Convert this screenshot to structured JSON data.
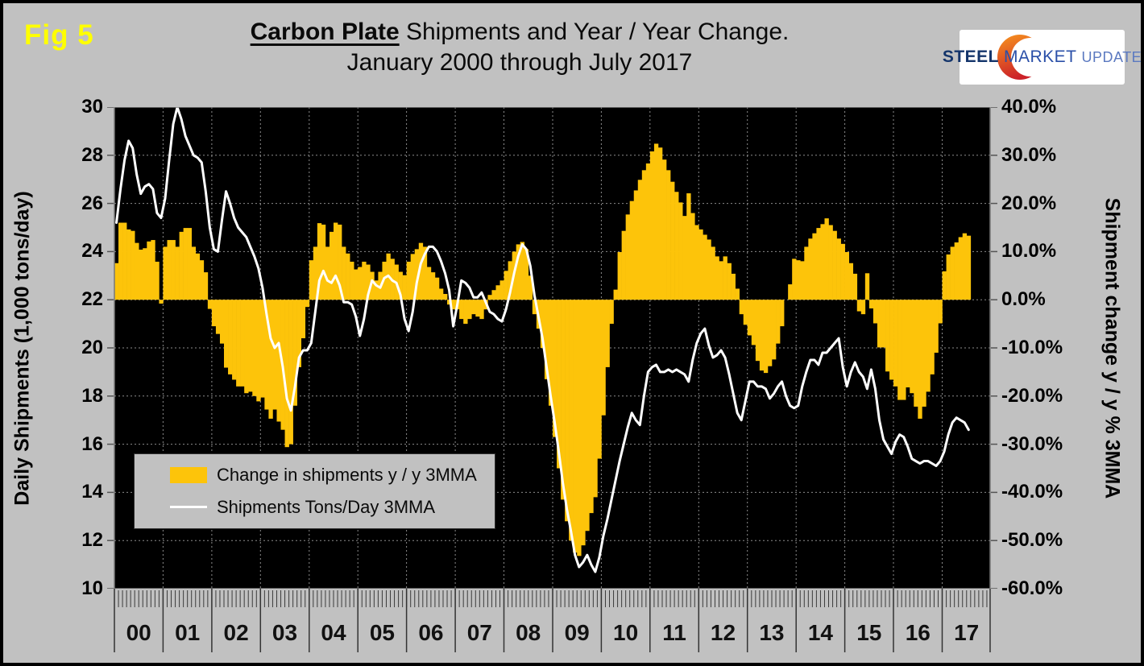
{
  "figure_label": "Fig 5",
  "title": {
    "part_bold": "Carbon Plate",
    "part_rest": " Shipments and Year / Year Change.",
    "line2": "January 2000 through July 2017"
  },
  "logo": {
    "steel": "STEEL",
    "market": "MARKET",
    "update": "UPDATE"
  },
  "legend": {
    "bar_label": "Change in shipments y / y 3MMA",
    "line_label": "Shipments Tons/Day 3MMA"
  },
  "colors": {
    "background": "#C1C1C1",
    "plot_background": "#000000",
    "bar": "#FDC40A",
    "line": "#FFFFFF",
    "fig_label": "#FFFF00",
    "logo_orange": "#F7941E",
    "logo_red": "#CC2229"
  },
  "chart_data": {
    "type": "combo",
    "subtypes": [
      "bar",
      "line"
    ],
    "title": "Carbon Plate Shipments and Year / Year Change. January 2000 through July 2017",
    "x_start": "2000-01",
    "x_end": "2017-07",
    "x_year_labels": [
      "00",
      "01",
      "02",
      "03",
      "04",
      "05",
      "06",
      "07",
      "08",
      "09",
      "10",
      "11",
      "12",
      "13",
      "14",
      "15",
      "16",
      "17"
    ],
    "grid": true,
    "legend_position": "inside-left-bottom",
    "y_left": {
      "label": "Daily Shipments (1,000 tons/day)",
      "min": 10,
      "max": 30,
      "step": 2,
      "tick_labels": [
        "30",
        "28",
        "26",
        "24",
        "22",
        "20",
        "18",
        "16",
        "14",
        "12",
        "10"
      ]
    },
    "y_right": {
      "label": "Shipment change y / y % 3MMA",
      "min": -60,
      "max": 40,
      "step": 10,
      "tick_labels": [
        "40.0%",
        "30.0%",
        "20.0%",
        "10.0%",
        "0.0%",
        "-10.0%",
        "-20.0%",
        "-30.0%",
        "-40.0%",
        "-50.0%",
        "-60.0%"
      ]
    },
    "series": [
      {
        "name": "Change in shipments y / y 3MMA",
        "type": "bar",
        "axis": "right",
        "unit": "percent",
        "values": [
          7.6,
          16.0,
          16.0,
          14.6,
          14.3,
          11.8,
          10.4,
          10.7,
          12.1,
          12.4,
          7.9,
          -0.8,
          11.0,
          12.4,
          12.4,
          11.0,
          14.1,
          14.9,
          14.9,
          11.0,
          9.6,
          8.2,
          5.7,
          -1.9,
          -5.5,
          -7.1,
          -9.1,
          -14.1,
          -15.5,
          -16.6,
          -18.0,
          -18.0,
          -19.4,
          -19.1,
          -20.0,
          -21.1,
          -20.3,
          -22.8,
          -24.7,
          -22.8,
          -25.3,
          -27.0,
          -30.6,
          -30.0,
          -22.0,
          -14.0,
          -8.0,
          -1.5,
          8.2,
          11.0,
          15.9,
          15.6,
          11.0,
          14.1,
          16.0,
          15.6,
          11.0,
          9.6,
          7.9,
          6.3,
          6.8,
          7.9,
          7.3,
          5.8,
          4.0,
          5.8,
          7.9,
          9.6,
          8.5,
          7.3,
          5.8,
          5.1,
          7.9,
          9.5,
          10.5,
          11.8,
          11.0,
          6.8,
          5.7,
          4.6,
          2.3,
          1.2,
          -1.0,
          -2.0,
          -2.0,
          -4.0,
          -5.0,
          -4.0,
          -3.0,
          -3.5,
          -4.0,
          -2.0,
          1.0,
          2.0,
          3.0,
          4.0,
          6.0,
          8.0,
          10.0,
          11.5,
          12.0,
          10.5,
          5.0,
          -3.0,
          -6.0,
          -10.0,
          -16.5,
          -22.0,
          -28.5,
          -35.0,
          -41.5,
          -46.0,
          -50.0,
          -52.5,
          -53.2,
          -51.0,
          -48.0,
          -44.3,
          -41.0,
          -33.0,
          -24.0,
          -14.0,
          -5.0,
          2.1,
          9.9,
          14.3,
          17.7,
          20.5,
          22.7,
          24.9,
          26.9,
          28.3,
          30.8,
          32.4,
          31.6,
          29.1,
          26.9,
          24.5,
          22.4,
          20.2,
          17.4,
          22.1,
          18.0,
          15.5,
          14.6,
          13.5,
          12.5,
          11.0,
          9.0,
          8.0,
          9.0,
          7.6,
          5.4,
          2.3,
          -3.0,
          -5.2,
          -7.4,
          -9.4,
          -12.7,
          -14.7,
          -15.2,
          -13.8,
          -12.4,
          -9.1,
          -5.5,
          0.0,
          3.2,
          8.5,
          8.2,
          8.0,
          11.0,
          12.7,
          13.8,
          14.9,
          15.7,
          16.9,
          15.5,
          14.3,
          12.7,
          11.6,
          9.9,
          7.6,
          5.4,
          -2.4,
          -3.0,
          5.5,
          -1.8,
          -4.9,
          -9.9,
          -9.9,
          -14.9,
          -16.6,
          -18.0,
          -20.8,
          -20.8,
          -18.2,
          -19.4,
          -22.2,
          -24.7,
          -22.2,
          -19.1,
          -15.5,
          -11.0,
          -4.9,
          5.9,
          9.4,
          11.0,
          11.9,
          13.0,
          13.8,
          13.3
        ]
      },
      {
        "name": "Shipments Tons/Day 3MMA",
        "type": "line",
        "axis": "left",
        "unit": "thousand tons/day",
        "values": [
          25.2,
          26.6,
          27.8,
          28.6,
          28.3,
          27.2,
          26.4,
          26.7,
          26.8,
          26.6,
          25.6,
          25.4,
          26.2,
          27.8,
          29.3,
          30.0,
          29.5,
          28.8,
          28.4,
          28.0,
          27.9,
          27.7,
          26.5,
          25.0,
          24.1,
          24.0,
          25.3,
          26.5,
          26.0,
          25.4,
          25.0,
          24.8,
          24.6,
          24.2,
          23.8,
          23.3,
          22.5,
          21.4,
          20.4,
          20.0,
          20.2,
          19.2,
          17.9,
          17.4,
          18.4,
          19.6,
          19.9,
          19.9,
          20.2,
          21.5,
          22.8,
          23.2,
          22.8,
          22.7,
          23.0,
          22.6,
          21.9,
          21.9,
          21.8,
          21.3,
          20.5,
          21.2,
          22.2,
          22.8,
          22.6,
          22.5,
          22.9,
          23.0,
          22.8,
          22.7,
          22.2,
          21.2,
          20.7,
          21.5,
          22.7,
          23.5,
          23.9,
          24.2,
          24.2,
          24.0,
          23.6,
          23.1,
          22.4,
          20.9,
          21.8,
          22.8,
          22.7,
          22.5,
          22.1,
          22.1,
          22.3,
          21.9,
          21.5,
          21.4,
          21.2,
          21.1,
          21.6,
          22.3,
          23.1,
          23.8,
          24.3,
          24.1,
          23.4,
          22.2,
          21.3,
          20.4,
          19.2,
          18.0,
          16.9,
          15.7,
          14.4,
          13.3,
          12.4,
          11.4,
          10.9,
          11.1,
          11.4,
          11.0,
          10.7,
          11.3,
          12.2,
          12.9,
          13.7,
          14.5,
          15.3,
          16.0,
          16.7,
          17.3,
          17.0,
          16.8,
          18.0,
          19.0,
          19.2,
          19.3,
          19.0,
          19.0,
          19.1,
          19.0,
          19.1,
          19.0,
          18.9,
          18.6,
          19.5,
          20.2,
          20.6,
          20.8,
          20.1,
          19.6,
          19.7,
          19.9,
          19.6,
          18.9,
          18.1,
          17.3,
          17.0,
          17.8,
          18.6,
          18.6,
          18.4,
          18.4,
          18.3,
          17.9,
          18.1,
          18.4,
          18.6,
          18.0,
          17.6,
          17.5,
          17.6,
          18.4,
          19.0,
          19.5,
          19.5,
          19.3,
          19.8,
          19.8,
          20.0,
          20.2,
          20.4,
          19.2,
          18.4,
          19.0,
          19.4,
          19.0,
          18.8,
          18.3,
          19.1,
          18.3,
          17.0,
          16.2,
          15.9,
          15.6,
          16.1,
          16.4,
          16.3,
          15.9,
          15.4,
          15.3,
          15.2,
          15.3,
          15.3,
          15.2,
          15.1,
          15.3,
          15.7,
          16.4,
          16.9,
          17.1,
          17.0,
          16.9,
          16.6
        ]
      }
    ]
  }
}
